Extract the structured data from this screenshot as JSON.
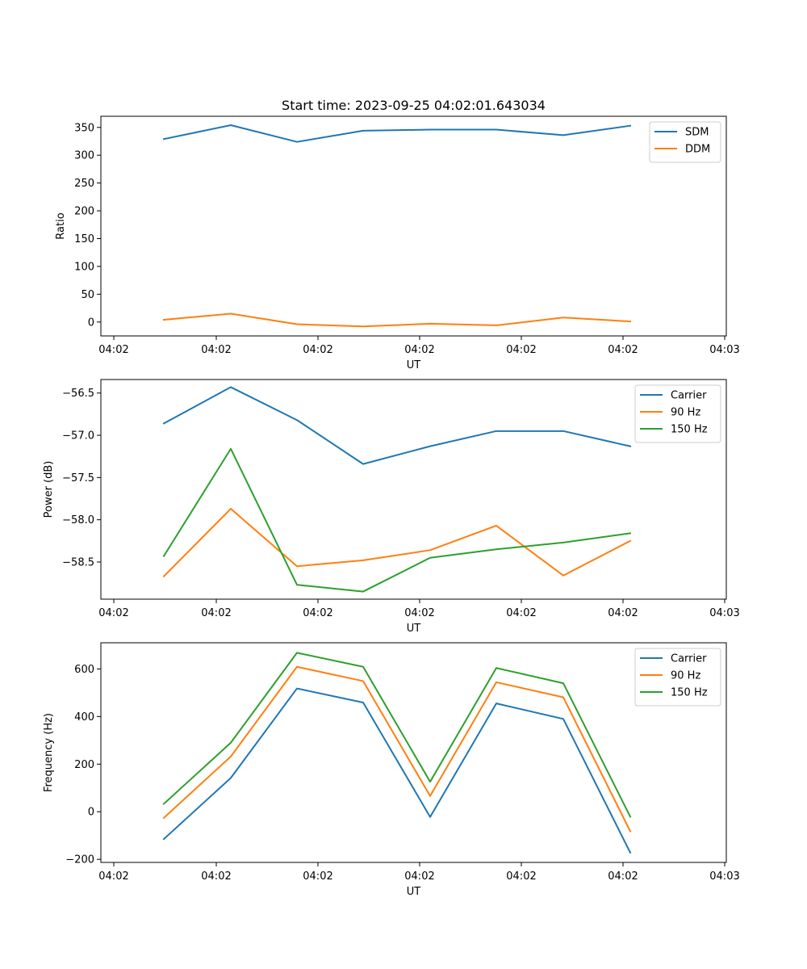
{
  "chart_data": [
    {
      "type": "line",
      "title": "Start time: 2023-09-25 04:02:01.643034",
      "xlabel": "UT",
      "ylabel": "Ratio",
      "x_tick_labels": [
        "04:02",
        "04:02",
        "04:02",
        "04:02",
        "04:02",
        "04:02",
        "04:03"
      ],
      "ylim": [
        -25,
        370
      ],
      "yticks": [
        0,
        50,
        100,
        150,
        200,
        250,
        300,
        350
      ],
      "legend_position": "top-right",
      "series": [
        {
          "name": "SDM",
          "color": "#1f77b4",
          "values": [
            329,
            354,
            324,
            344,
            346,
            346,
            336,
            353
          ]
        },
        {
          "name": "DDM",
          "color": "#ff7f0e",
          "values": [
            4,
            15,
            -4,
            -8,
            -3,
            -6,
            8,
            1
          ]
        }
      ]
    },
    {
      "type": "line",
      "title": "",
      "xlabel": "UT",
      "ylabel": "Power (dB)",
      "x_tick_labels": [
        "04:02",
        "04:02",
        "04:02",
        "04:02",
        "04:02",
        "04:02",
        "04:03"
      ],
      "ylim": [
        -58.94,
        -56.34
      ],
      "yticks": [
        -58.5,
        -58.0,
        -57.5,
        -57.0,
        -56.5
      ],
      "ytick_labels": [
        "−58.5",
        "−58.0",
        "−57.5",
        "−57.0",
        "−56.5"
      ],
      "legend_position": "top-right",
      "series": [
        {
          "name": "Carrier",
          "color": "#1f77b4",
          "values": [
            -56.86,
            -56.43,
            -56.82,
            -57.34,
            -57.13,
            -56.95,
            -56.95,
            -57.13
          ]
        },
        {
          "name": "90 Hz",
          "color": "#ff7f0e",
          "values": [
            -58.67,
            -57.87,
            -58.55,
            -58.48,
            -58.36,
            -58.07,
            -58.66,
            -58.25
          ]
        },
        {
          "name": "150 Hz",
          "color": "#2ca02c",
          "values": [
            -58.43,
            -57.16,
            -58.77,
            -58.85,
            -58.45,
            -58.35,
            -58.27,
            -58.16
          ]
        }
      ]
    },
    {
      "type": "line",
      "title": "",
      "xlabel": "UT",
      "ylabel": "Frequency (Hz)",
      "x_tick_labels": [
        "04:02",
        "04:02",
        "04:02",
        "04:02",
        "04:02",
        "04:02",
        "04:03"
      ],
      "ylim": [
        -213,
        710
      ],
      "yticks": [
        -200,
        0,
        200,
        400,
        600
      ],
      "ytick_labels": [
        "−200",
        "0",
        "200",
        "400",
        "600"
      ],
      "legend_position": "top-right",
      "series": [
        {
          "name": "Carrier",
          "color": "#1f77b4",
          "values": [
            -115,
            142,
            518,
            459,
            -22,
            455,
            390,
            -172
          ]
        },
        {
          "name": "90 Hz",
          "color": "#ff7f0e",
          "values": [
            -26,
            232,
            609,
            549,
            66,
            544,
            481,
            -82
          ]
        },
        {
          "name": "150 Hz",
          "color": "#2ca02c",
          "values": [
            33,
            290,
            668,
            609,
            126,
            604,
            540,
            -21
          ]
        }
      ]
    }
  ]
}
